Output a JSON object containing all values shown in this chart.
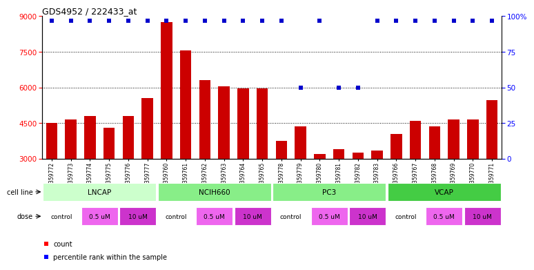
{
  "title": "GDS4952 / 222433_at",
  "samples": [
    "GSM1359772",
    "GSM1359773",
    "GSM1359774",
    "GSM1359775",
    "GSM1359776",
    "GSM1359777",
    "GSM1359760",
    "GSM1359761",
    "GSM1359762",
    "GSM1359763",
    "GSM1359764",
    "GSM1359765",
    "GSM1359778",
    "GSM1359779",
    "GSM1359780",
    "GSM1359781",
    "GSM1359782",
    "GSM1359783",
    "GSM1359766",
    "GSM1359767",
    "GSM1359768",
    "GSM1359769",
    "GSM1359770",
    "GSM1359771"
  ],
  "bar_values": [
    4500,
    4650,
    4800,
    4300,
    4800,
    5550,
    8750,
    7550,
    6300,
    6050,
    5950,
    5950,
    3750,
    4350,
    3200,
    3400,
    3250,
    3350,
    4050,
    4600,
    4350,
    4650,
    4650,
    5450
  ],
  "percentile_ranks_high": [
    0,
    1,
    2,
    3,
    4,
    5,
    6,
    7,
    8,
    9,
    10,
    11,
    12,
    14,
    17,
    18,
    19,
    20,
    21,
    22,
    23
  ],
  "percentile_ranks_mid": [
    13,
    15,
    16
  ],
  "ylim_left": [
    3000,
    9000
  ],
  "ylim_right": [
    0,
    100
  ],
  "yticks_left": [
    3000,
    4500,
    6000,
    7500,
    9000
  ],
  "yticks_right": [
    0,
    25,
    50,
    75,
    100
  ],
  "bar_color": "#cc0000",
  "dot_color": "#0000cc",
  "cell_lines": [
    {
      "name": "LNCAP",
      "start": 0,
      "end": 6,
      "color": "#ccffcc"
    },
    {
      "name": "NCIH660",
      "start": 6,
      "end": 12,
      "color": "#88ee88"
    },
    {
      "name": "PC3",
      "start": 12,
      "end": 18,
      "color": "#88ee88"
    },
    {
      "name": "VCAP",
      "start": 18,
      "end": 24,
      "color": "#44cc44"
    }
  ],
  "doses": [
    {
      "label": "control",
      "start": 0,
      "end": 2,
      "color": "#ffffff"
    },
    {
      "label": "0.5 uM",
      "start": 2,
      "end": 4,
      "color": "#ee66ee"
    },
    {
      "label": "10 uM",
      "start": 4,
      "end": 6,
      "color": "#cc33cc"
    },
    {
      "label": "control",
      "start": 6,
      "end": 8,
      "color": "#ffffff"
    },
    {
      "label": "0.5 uM",
      "start": 8,
      "end": 10,
      "color": "#ee66ee"
    },
    {
      "label": "10 uM",
      "start": 10,
      "end": 12,
      "color": "#cc33cc"
    },
    {
      "label": "control",
      "start": 12,
      "end": 14,
      "color": "#ffffff"
    },
    {
      "label": "0.5 uM",
      "start": 14,
      "end": 16,
      "color": "#ee66ee"
    },
    {
      "label": "10 uM",
      "start": 16,
      "end": 18,
      "color": "#cc33cc"
    },
    {
      "label": "control",
      "start": 18,
      "end": 20,
      "color": "#ffffff"
    },
    {
      "label": "0.5 uM",
      "start": 20,
      "end": 22,
      "color": "#ee66ee"
    },
    {
      "label": "10 uM",
      "start": 22,
      "end": 24,
      "color": "#cc33cc"
    }
  ],
  "background_color": "#ffffff",
  "plot_bg_color": "#ffffff"
}
